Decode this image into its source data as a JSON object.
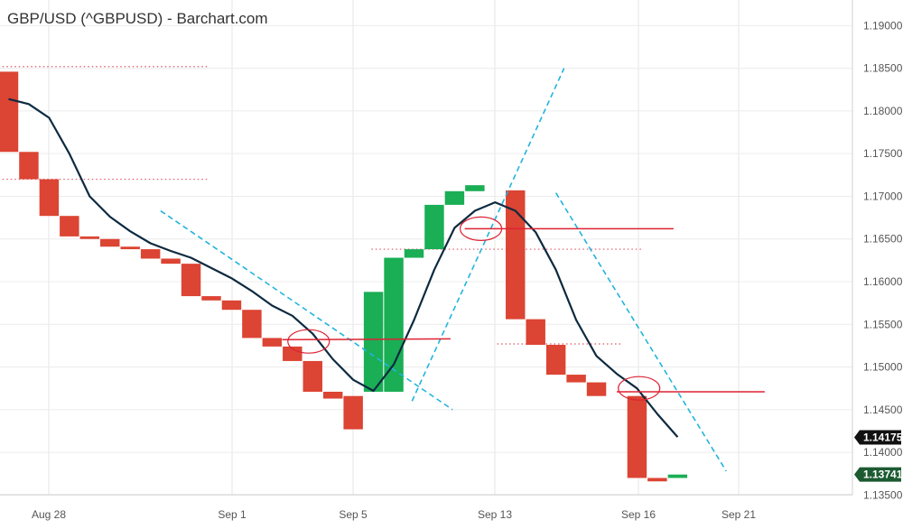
{
  "chart_data": {
    "type": "bar",
    "title": "GBP/USD (^GBPUSD) - Barchart.com",
    "x_ticks": [
      "Aug 28",
      "Sep 1",
      "Sep 5",
      "Sep 13",
      "Sep 16",
      "Sep 21"
    ],
    "y_ticks": [
      "1.19000",
      "1.18500",
      "1.18000",
      "1.17500",
      "1.17000",
      "1.16500",
      "1.16000",
      "1.15500",
      "1.15000",
      "1.14500",
      "1.14000",
      "1.13500"
    ],
    "ylim": [
      1.1325,
      1.193
    ],
    "grid": true,
    "up_color": "#1aae55",
    "down_color": "#dc4433",
    "moving_average_color": "#0d2a40",
    "trendline_color": "#22b4dd",
    "level_line_color": "#dd2233",
    "bricks": [
      {
        "slot": 0,
        "open": 1.1846,
        "close": 1.1752
      },
      {
        "slot": 1,
        "open": 1.1752,
        "close": 1.172
      },
      {
        "slot": 2,
        "open": 1.172,
        "close": 1.1677
      },
      {
        "slot": 3,
        "open": 1.1677,
        "close": 1.1653
      },
      {
        "slot": 4,
        "open": 1.1653,
        "close": 1.165
      },
      {
        "slot": 5,
        "open": 1.165,
        "close": 1.1641
      },
      {
        "slot": 6,
        "open": 1.1641,
        "close": 1.1638
      },
      {
        "slot": 7,
        "open": 1.1638,
        "close": 1.1627
      },
      {
        "slot": 8,
        "open": 1.1627,
        "close": 1.1621
      },
      {
        "slot": 9,
        "open": 1.1621,
        "close": 1.1583
      },
      {
        "slot": 10,
        "open": 1.1583,
        "close": 1.1578
      },
      {
        "slot": 11,
        "open": 1.1578,
        "close": 1.1567
      },
      {
        "slot": 12,
        "open": 1.1567,
        "close": 1.1534
      },
      {
        "slot": 13,
        "open": 1.1534,
        "close": 1.1524
      },
      {
        "slot": 14,
        "open": 1.1524,
        "close": 1.1507
      },
      {
        "slot": 15,
        "open": 1.1507,
        "close": 1.1471
      },
      {
        "slot": 16,
        "open": 1.1471,
        "close": 1.1463
      },
      {
        "slot": 18,
        "open": 1.1471,
        "close": 1.1588
      },
      {
        "slot": 19,
        "open": 1.1471,
        "close": 1.1628
      },
      {
        "slot": 20,
        "open": 1.1628,
        "close": 1.1638
      },
      {
        "slot": 21,
        "open": 1.1638,
        "close": 1.169
      },
      {
        "slot": 22,
        "open": 1.169,
        "close": 1.1706
      },
      {
        "slot": 23,
        "open": 1.1706,
        "close": 1.1713
      },
      {
        "slot": 25,
        "open": 1.1707,
        "close": 1.1556
      },
      {
        "slot": 26,
        "open": 1.1556,
        "close": 1.1526
      },
      {
        "slot": 27,
        "open": 1.1526,
        "close": 1.1491
      },
      {
        "slot": 28,
        "open": 1.1491,
        "close": 1.1482
      },
      {
        "slot": 29,
        "open": 1.1482,
        "close": 1.1466
      },
      {
        "slot": 31,
        "open": 1.1466,
        "close": 1.137
      },
      {
        "slot": 32,
        "open": 1.137,
        "close": 1.1366
      },
      {
        "slot": 33,
        "open": 1.137,
        "close": 1.1374
      }
    ],
    "extra_bricks": [
      {
        "slot": 17,
        "open": 1.1466,
        "close": 1.1427
      }
    ],
    "moving_average": [
      [
        0,
        1.1814
      ],
      [
        1,
        1.1808
      ],
      [
        2,
        1.1792
      ],
      [
        3,
        1.175
      ],
      [
        4,
        1.17
      ],
      [
        5,
        1.1676
      ],
      [
        6,
        1.1659
      ],
      [
        7,
        1.1645
      ],
      [
        8,
        1.1636
      ],
      [
        9,
        1.1628
      ],
      [
        10,
        1.1616
      ],
      [
        11,
        1.1604
      ],
      [
        12,
        1.1589
      ],
      [
        13,
        1.1572
      ],
      [
        14,
        1.156
      ],
      [
        15,
        1.1539
      ],
      [
        16,
        1.1509
      ],
      [
        17,
        1.1485
      ],
      [
        18,
        1.1472
      ],
      [
        19,
        1.1503
      ],
      [
        20,
        1.1555
      ],
      [
        21,
        1.1614
      ],
      [
        22,
        1.1663
      ],
      [
        23,
        1.1683
      ],
      [
        24,
        1.1693
      ],
      [
        25,
        1.1683
      ],
      [
        26,
        1.1658
      ],
      [
        27,
        1.1614
      ],
      [
        28,
        1.1555
      ],
      [
        29,
        1.1513
      ],
      [
        30,
        1.1492
      ],
      [
        31,
        1.1475
      ],
      [
        32,
        1.1445
      ],
      [
        33,
        1.1418
      ]
    ],
    "trendlines": [
      {
        "from": [
          7.5,
          1.1683
        ],
        "to": [
          21.9,
          1.145
        ]
      },
      {
        "from": [
          19.9,
          1.146
        ],
        "to": [
          27.4,
          1.185
        ]
      },
      {
        "from": [
          27.0,
          1.1704
        ],
        "to": [
          35.4,
          1.1378
        ]
      }
    ],
    "level_lines": [
      {
        "from": [
          13.5,
          1.1532
        ],
        "to": [
          21.8,
          1.1533
        ]
      },
      {
        "from": [
          22.5,
          1.1662
        ],
        "to": [
          32.8,
          1.1662
        ]
      },
      {
        "from": [
          30.0,
          1.1471
        ],
        "to": [
          37.3,
          1.1471
        ]
      }
    ],
    "level_markers": [
      {
        "x": 14.8,
        "y": 1.153
      },
      {
        "x": 23.3,
        "y": 1.1662
      },
      {
        "x": 31.1,
        "y": 1.1475
      }
    ],
    "dotted_levels": [
      {
        "from": [
          -0.5,
          1.1852
        ],
        "to": [
          9.9,
          1.1852
        ]
      },
      {
        "from": [
          -0.5,
          1.172
        ],
        "to": [
          9.9,
          1.172
        ]
      },
      {
        "from": [
          17.9,
          1.1638
        ],
        "to": [
          31.3,
          1.1638
        ]
      },
      {
        "from": [
          24.1,
          1.1527
        ],
        "to": [
          30.2,
          1.1527
        ]
      }
    ],
    "last_prices": [
      {
        "label": "1.14175",
        "value": 1.14175,
        "color": "#111111"
      },
      {
        "label": "1.13741",
        "value": 1.13741,
        "color": "#1c5a32"
      }
    ]
  }
}
